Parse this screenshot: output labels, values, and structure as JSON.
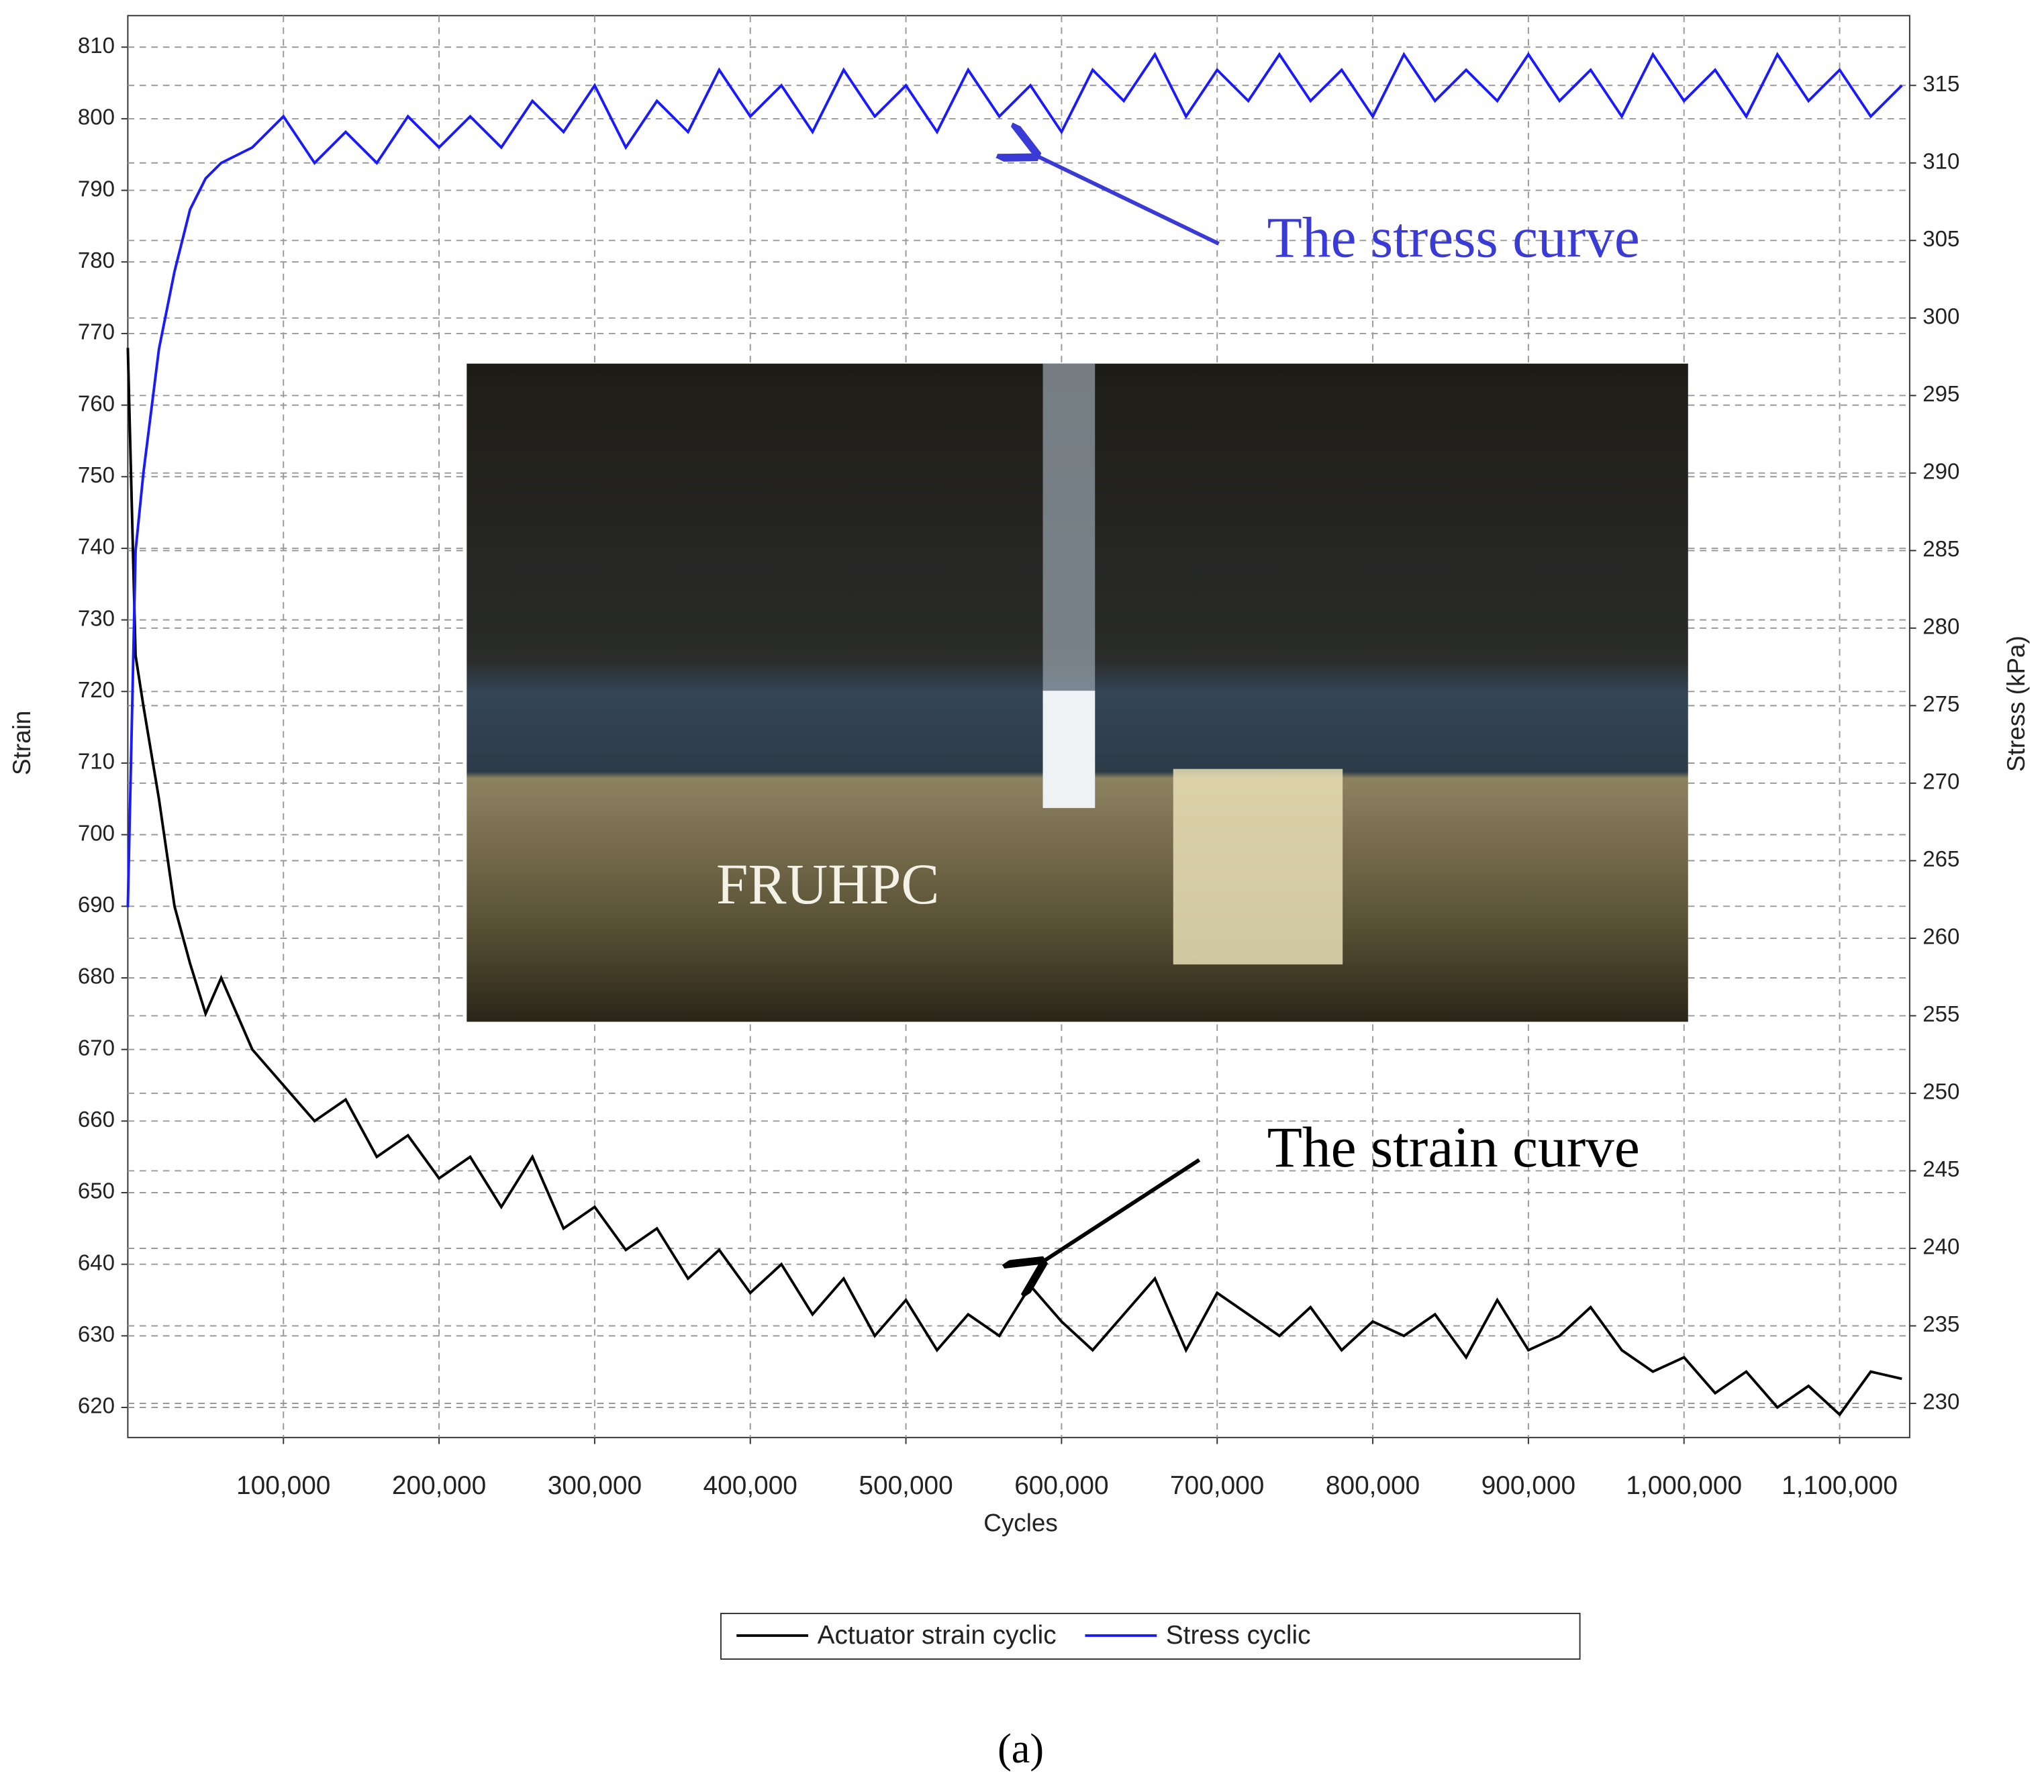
{
  "chart_data": {
    "type": "line",
    "xlabel": "Cycles",
    "ylabel": "Strain",
    "y2label": "Stress (kPa)",
    "x": [
      0,
      5000,
      10000,
      20000,
      30000,
      40000,
      50000,
      60000,
      80000,
      100000,
      120000,
      140000,
      160000,
      180000,
      200000,
      220000,
      240000,
      260000,
      280000,
      300000,
      320000,
      340000,
      360000,
      380000,
      400000,
      420000,
      440000,
      460000,
      480000,
      500000,
      520000,
      540000,
      560000,
      580000,
      600000,
      620000,
      640000,
      660000,
      680000,
      700000,
      720000,
      740000,
      760000,
      780000,
      800000,
      820000,
      840000,
      860000,
      880000,
      900000,
      920000,
      940000,
      960000,
      980000,
      1000000,
      1020000,
      1040000,
      1060000,
      1080000,
      1100000,
      1120000,
      1140000
    ],
    "xlim": [
      0,
      1145000
    ],
    "xticks": [
      {
        "value": 100000,
        "label": "100,000"
      },
      {
        "value": 200000,
        "label": "200,000"
      },
      {
        "value": 300000,
        "label": "300,000"
      },
      {
        "value": 400000,
        "label": "400,000"
      },
      {
        "value": 500000,
        "label": "500,000"
      },
      {
        "value": 600000,
        "label": "600,000"
      },
      {
        "value": 700000,
        "label": "700,000"
      },
      {
        "value": 800000,
        "label": "800,000"
      },
      {
        "value": 900000,
        "label": "900,000"
      },
      {
        "value": 1000000,
        "label": "1,000,000"
      },
      {
        "value": 1100000,
        "label": "1,100,000"
      }
    ],
    "ylim": [
      615.8,
      814.4
    ],
    "yticks": [
      620,
      630,
      640,
      650,
      660,
      670,
      680,
      690,
      700,
      710,
      720,
      730,
      740,
      750,
      760,
      770,
      780,
      790,
      800,
      810
    ],
    "y2lim": [
      227.8,
      319.5
    ],
    "y2ticks": [
      230,
      235,
      240,
      245,
      250,
      255,
      260,
      265,
      270,
      275,
      280,
      285,
      290,
      295,
      300,
      305,
      310,
      315
    ],
    "grid": true,
    "legend": "bottom",
    "series": [
      {
        "name": "Actuator strain cyclic",
        "color": "#000000",
        "values": [
          768,
          725,
          718,
          705,
          690,
          682,
          675,
          680,
          670,
          665,
          660,
          663,
          655,
          658,
          652,
          655,
          648,
          655,
          645,
          648,
          642,
          645,
          638,
          642,
          636,
          640,
          633,
          638,
          630,
          635,
          628,
          633,
          630,
          637,
          632,
          628,
          633,
          638,
          628,
          636,
          633,
          630,
          634,
          628,
          632,
          630,
          633,
          627,
          635,
          628,
          630,
          634,
          628,
          625,
          627,
          622,
          625,
          620,
          623,
          619,
          625,
          624
        ]
      },
      {
        "name": "Stress cyclic",
        "color": "#1a1aff",
        "axis": "y2",
        "values": [
          262,
          285,
          290,
          298,
          303,
          307,
          309,
          310,
          311,
          313,
          310,
          312,
          310,
          313,
          311,
          313,
          311,
          314,
          312,
          315,
          311,
          314,
          312,
          316,
          313,
          315,
          312,
          316,
          313,
          315,
          312,
          316,
          313,
          315,
          312,
          316,
          314,
          317,
          313,
          316,
          314,
          317,
          314,
          316,
          313,
          317,
          314,
          316,
          314,
          317,
          314,
          316,
          313,
          317,
          314,
          316,
          313,
          317,
          314,
          316,
          313,
          315
        ]
      }
    ],
    "annotations": [
      "The stress curve",
      "The strain curve"
    ]
  },
  "inset_label": "FRUHPC",
  "caption": "(a)"
}
